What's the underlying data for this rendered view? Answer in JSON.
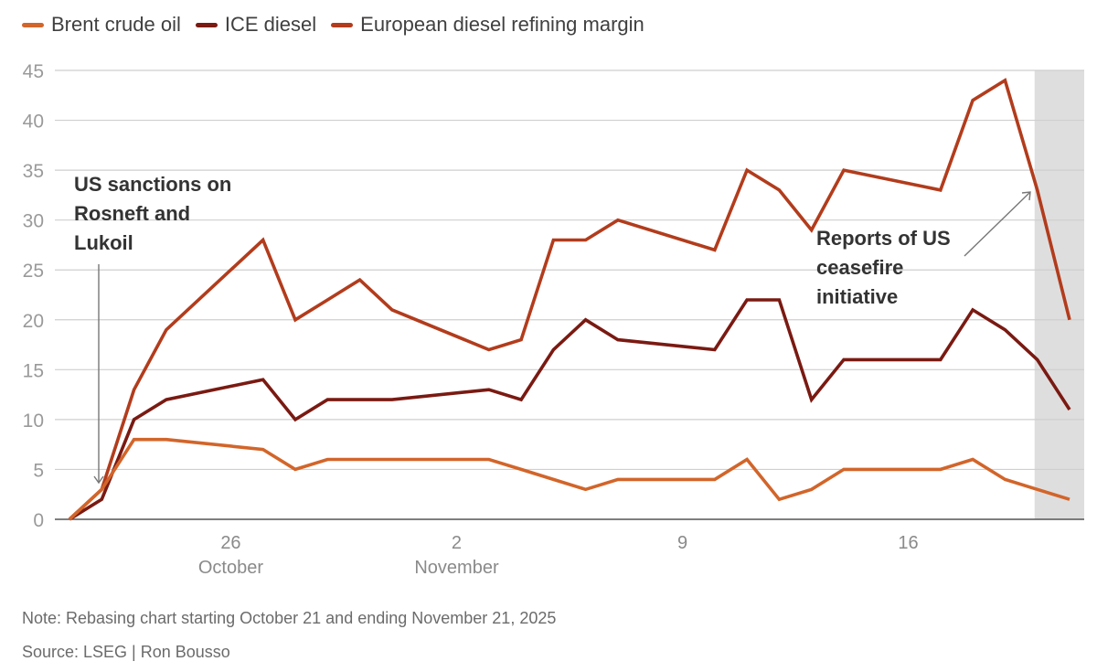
{
  "legend": [
    {
      "label": "Brent crude oil",
      "color": "#d2652a"
    },
    {
      "label": "ICE diesel",
      "color": "#7a1a12"
    },
    {
      "label": "European diesel refining margin",
      "color": "#b23c1c"
    }
  ],
  "footer": {
    "note": "Note: Rebasing chart starting October 21 and ending November 21, 2025",
    "source": "Source: LSEG | Ron Bousso"
  },
  "chart_data": {
    "type": "line",
    "title": "",
    "xlabel": "",
    "ylabel": "",
    "ylim": [
      0,
      45
    ],
    "yticks": [
      0,
      5,
      10,
      15,
      20,
      25,
      30,
      35,
      40,
      45
    ],
    "grid": true,
    "legend_position": "top-left",
    "x_range": [
      "2025-10-21",
      "2025-11-21"
    ],
    "x": [
      "2025-10-21",
      "2025-10-22",
      "2025-10-23",
      "2025-10-24",
      "2025-10-27",
      "2025-10-28",
      "2025-10-29",
      "2025-10-30",
      "2025-10-31",
      "2025-11-03",
      "2025-11-04",
      "2025-11-05",
      "2025-11-06",
      "2025-11-07",
      "2025-11-10",
      "2025-11-11",
      "2025-11-12",
      "2025-11-13",
      "2025-11-14",
      "2025-11-17",
      "2025-11-18",
      "2025-11-19",
      "2025-11-20",
      "2025-11-21"
    ],
    "xticks": [
      {
        "date": "2025-10-26",
        "label": "26",
        "sublabel": "October"
      },
      {
        "date": "2025-11-02",
        "label": "2",
        "sublabel": "November"
      },
      {
        "date": "2025-11-09",
        "label": "9",
        "sublabel": ""
      },
      {
        "date": "2025-11-16",
        "label": "16",
        "sublabel": ""
      }
    ],
    "series": [
      {
        "name": "Brent crude oil",
        "color": "#d2652a",
        "values": [
          0,
          3,
          8,
          8,
          7,
          5,
          6,
          6,
          6,
          6,
          5,
          4,
          3,
          4,
          4,
          6,
          2,
          3,
          5,
          5,
          6,
          4,
          3,
          2
        ]
      },
      {
        "name": "ICE diesel",
        "color": "#7a1a12",
        "values": [
          0,
          2,
          10,
          12,
          14,
          10,
          12,
          12,
          12,
          13,
          12,
          17,
          20,
          18,
          17,
          22,
          22,
          12,
          16,
          16,
          21,
          19,
          16,
          11
        ]
      },
      {
        "name": "European diesel refining margin",
        "color": "#b23c1c",
        "values": [
          0,
          3,
          13,
          19,
          28,
          20,
          22,
          24,
          21,
          17,
          18,
          28,
          28,
          30,
          27,
          35,
          33,
          29,
          35,
          33,
          42,
          44,
          33,
          20
        ]
      }
    ],
    "shaded_region": {
      "from": "2025-11-20",
      "to": "2025-11-21",
      "color": "#dedede"
    },
    "annotations": [
      {
        "text": [
          "US sanctions on",
          "Rosneft and",
          "Lukoil"
        ],
        "arrow_to_date": "2025-10-22",
        "arrow_to_value": 3
      },
      {
        "text": [
          "Reports of US",
          "ceasefire",
          "initiative"
        ],
        "arrow_to_date": "2025-11-20",
        "arrow_to_value": 33
      }
    ]
  }
}
